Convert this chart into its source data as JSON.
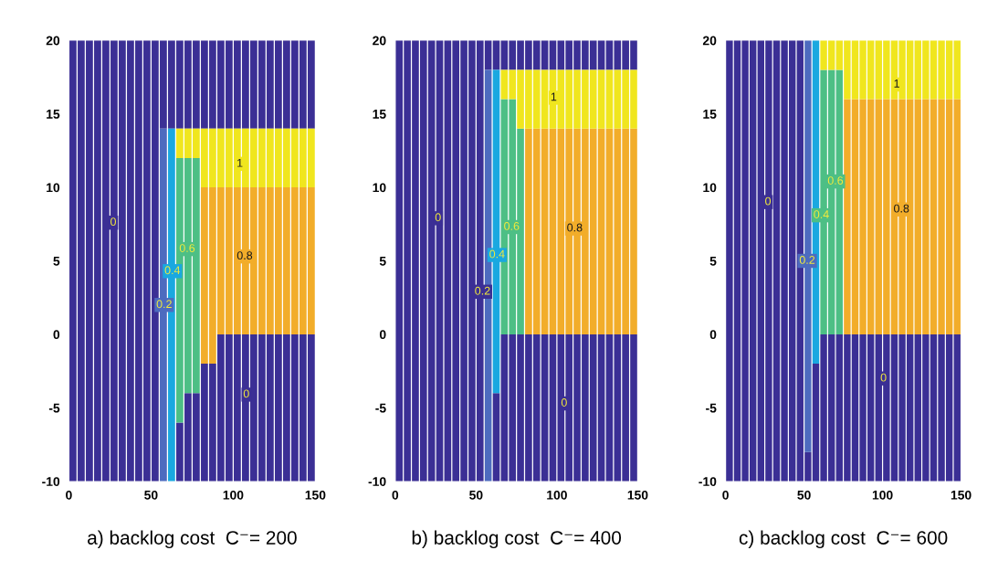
{
  "chart_data": [
    {
      "type": "bar",
      "title": "a) backlog cost  C⁻= 200",
      "xlim": [
        0,
        150
      ],
      "ylim": [
        -10,
        20
      ],
      "xticks": [
        0,
        50,
        100,
        150
      ],
      "yticks": [
        -10,
        -5,
        0,
        5,
        10,
        15,
        20
      ],
      "series": [
        {
          "color": "#3b2f95",
          "x": [
            2.5,
            7.5,
            12.5,
            17.5,
            22.5,
            27.5,
            32.5,
            37.5,
            42.5,
            47.5,
            52.5,
            67.5,
            72.5,
            77.5,
            82.5,
            87.5,
            92.5,
            97.5,
            102.5,
            107.5,
            112.5,
            117.5,
            122.5,
            127.5,
            132.5,
            137.5,
            142.5,
            147.5
          ],
          "base": [
            -10,
            -10,
            -10,
            -10,
            -10,
            -10,
            -10,
            -10,
            -10,
            -10,
            -10,
            -10,
            -10,
            -10,
            -10,
            -10,
            -10,
            -10,
            -10,
            -10,
            -10,
            -10,
            -10,
            -10,
            -10,
            -10,
            -10,
            -10
          ],
          "values": [
            30,
            30,
            30,
            30,
            30,
            30,
            30,
            30,
            30,
            30,
            30,
            4,
            6,
            6,
            8,
            8,
            10,
            10,
            10,
            10,
            10,
            10,
            10,
            10,
            10,
            10,
            10,
            10
          ]
        },
        {
          "color": "#3b2f95",
          "x": [
            57.5,
            62.5,
            67.5,
            72.5,
            77.5,
            82.5,
            87.5,
            92.5,
            97.5,
            102.5,
            107.5,
            112.5,
            117.5,
            122.5,
            127.5,
            132.5,
            137.5,
            142.5,
            147.5
          ],
          "base": [
            14,
            14,
            14,
            14,
            14,
            14,
            14,
            14,
            14,
            14,
            14,
            14,
            14,
            14,
            14,
            14,
            14,
            14,
            14
          ],
          "values": [
            6,
            6,
            6,
            6,
            6,
            6,
            6,
            6,
            6,
            6,
            6,
            6,
            6,
            6,
            6,
            6,
            6,
            6,
            6
          ]
        },
        {
          "color": "#4d6bbf",
          "x": [
            57.5
          ],
          "base": [
            -10
          ],
          "values": [
            24
          ]
        },
        {
          "color": "#1aa8e0",
          "x": [
            62.5
          ],
          "base": [
            -10
          ],
          "values": [
            24
          ]
        },
        {
          "color": "#4dbf85",
          "x": [
            67.5,
            72.5,
            77.5
          ],
          "base": [
            -6,
            -4,
            -4
          ],
          "values": [
            18,
            16,
            16
          ]
        },
        {
          "color": "#f2ad2a",
          "x": [
            82.5,
            87.5,
            92.5,
            97.5,
            102.5,
            107.5,
            112.5,
            117.5,
            122.5,
            127.5,
            132.5,
            137.5,
            142.5,
            147.5
          ],
          "base": [
            -2,
            -2,
            0,
            0,
            0,
            0,
            0,
            0,
            0,
            0,
            0,
            0,
            0,
            0
          ],
          "values": [
            12,
            12,
            10,
            10,
            10,
            10,
            10,
            10,
            10,
            10,
            10,
            10,
            10,
            10
          ]
        },
        {
          "color": "#f0e61e",
          "x": [
            67.5,
            72.5,
            77.5,
            82.5,
            87.5,
            92.5,
            97.5,
            102.5,
            107.5,
            112.5,
            117.5,
            122.5,
            127.5,
            132.5,
            137.5,
            142.5,
            147.5
          ],
          "base": [
            12,
            12,
            12,
            10,
            10,
            10,
            10,
            10,
            10,
            10,
            10,
            10,
            10,
            10,
            10,
            10,
            10
          ],
          "values": [
            2,
            2,
            2,
            4,
            4,
            4,
            4,
            4,
            4,
            4,
            4,
            4,
            4,
            4,
            4,
            4,
            4
          ]
        }
      ],
      "annotations": [
        {
          "text": "0",
          "x": 27,
          "y": 7.6
        },
        {
          "text": "0.2",
          "x": 58,
          "y": 2.0
        },
        {
          "text": "0.4",
          "x": 63,
          "y": 4.3
        },
        {
          "text": "0.6",
          "x": 72,
          "y": 5.8
        },
        {
          "text": "0.8",
          "x": 107,
          "y": 5.3
        },
        {
          "text": "1",
          "x": 104,
          "y": 11.6
        },
        {
          "text": "0",
          "x": 108,
          "y": -4.1
        }
      ]
    },
    {
      "type": "bar",
      "title": "b) backlog cost  C⁻= 400",
      "xlim": [
        0,
        150
      ],
      "ylim": [
        -10,
        20
      ],
      "xticks": [
        0,
        50,
        100,
        150
      ],
      "yticks": [
        -10,
        -5,
        0,
        5,
        10,
        15,
        20
      ],
      "series": [
        {
          "color": "#3b2f95",
          "x": [
            2.5,
            7.5,
            12.5,
            17.5,
            22.5,
            27.5,
            32.5,
            37.5,
            42.5,
            47.5,
            52.5,
            62.5,
            67.5,
            72.5,
            77.5,
            82.5,
            87.5,
            92.5,
            97.5,
            102.5,
            107.5,
            112.5,
            117.5,
            122.5,
            127.5,
            132.5,
            137.5,
            142.5,
            147.5
          ],
          "base": [
            -10,
            -10,
            -10,
            -10,
            -10,
            -10,
            -10,
            -10,
            -10,
            -10,
            -10,
            -10,
            -10,
            -10,
            -10,
            -10,
            -10,
            -10,
            -10,
            -10,
            -10,
            -10,
            -10,
            -10,
            -10,
            -10,
            -10,
            -10,
            -10
          ],
          "values": [
            30,
            30,
            30,
            30,
            30,
            30,
            30,
            30,
            30,
            30,
            30,
            6,
            10,
            10,
            10,
            10,
            10,
            10,
            10,
            10,
            10,
            10,
            10,
            10,
            10,
            10,
            10,
            10,
            10
          ]
        },
        {
          "color": "#3b2f95",
          "x": [
            57.5,
            62.5,
            67.5,
            72.5,
            77.5,
            82.5,
            87.5,
            92.5,
            97.5,
            102.5,
            107.5,
            112.5,
            117.5,
            122.5,
            127.5,
            132.5,
            137.5,
            142.5,
            147.5
          ],
          "base": [
            18,
            18,
            18,
            18,
            18,
            18,
            18,
            18,
            18,
            18,
            18,
            18,
            18,
            18,
            18,
            18,
            18,
            18,
            18
          ],
          "values": [
            2,
            2,
            2,
            2,
            2,
            2,
            2,
            2,
            2,
            2,
            2,
            2,
            2,
            2,
            2,
            2,
            2,
            2,
            2
          ]
        },
        {
          "color": "#4d6bbf",
          "x": [
            57.5
          ],
          "base": [
            -10
          ],
          "values": [
            28
          ]
        },
        {
          "color": "#1aa8e0",
          "x": [
            62.5
          ],
          "base": [
            -4
          ],
          "values": [
            22
          ]
        },
        {
          "color": "#4dbf85",
          "x": [
            67.5,
            72.5,
            77.5
          ],
          "base": [
            0,
            0,
            0
          ],
          "values": [
            16,
            16,
            14
          ]
        },
        {
          "color": "#f2ad2a",
          "x": [
            82.5,
            87.5,
            92.5,
            97.5,
            102.5,
            107.5,
            112.5,
            117.5,
            122.5,
            127.5,
            132.5,
            137.5,
            142.5,
            147.5
          ],
          "base": [
            0,
            0,
            0,
            0,
            0,
            0,
            0,
            0,
            0,
            0,
            0,
            0,
            0,
            0
          ],
          "values": [
            14,
            14,
            14,
            14,
            14,
            14,
            14,
            14,
            14,
            14,
            14,
            14,
            14,
            14
          ]
        },
        {
          "color": "#f0e61e",
          "x": [
            67.5,
            72.5,
            77.5,
            82.5,
            87.5,
            92.5,
            97.5,
            102.5,
            107.5,
            112.5,
            117.5,
            122.5,
            127.5,
            132.5,
            137.5,
            142.5,
            147.5
          ],
          "base": [
            16,
            16,
            14,
            14,
            14,
            14,
            14,
            14,
            14,
            14,
            14,
            14,
            14,
            14,
            14,
            14,
            14
          ],
          "values": [
            2,
            2,
            4,
            4,
            4,
            4,
            4,
            4,
            4,
            4,
            4,
            4,
            4,
            4,
            4,
            4,
            4
          ]
        }
      ],
      "annotations": [
        {
          "text": "0",
          "x": 26.5,
          "y": 7.9
        },
        {
          "text": "0.2",
          "x": 54,
          "y": 2.9
        },
        {
          "text": "0.4",
          "x": 63,
          "y": 5.4
        },
        {
          "text": "0.6",
          "x": 72,
          "y": 7.3
        },
        {
          "text": "0.8",
          "x": 111,
          "y": 7.2
        },
        {
          "text": "1",
          "x": 98,
          "y": 16.1
        },
        {
          "text": "0",
          "x": 104.5,
          "y": -4.7
        }
      ]
    },
    {
      "type": "bar",
      "title": "c) backlog cost  C⁻= 600",
      "xlim": [
        0,
        150
      ],
      "ylim": [
        -10,
        20
      ],
      "xticks": [
        0,
        50,
        100,
        150
      ],
      "yticks": [
        -10,
        -5,
        0,
        5,
        10,
        15,
        20
      ],
      "series": [
        {
          "color": "#3b2f95",
          "x": [
            2.5,
            7.5,
            12.5,
            17.5,
            22.5,
            27.5,
            32.5,
            37.5,
            42.5,
            47.5,
            52.5,
            57.5,
            62.5,
            67.5,
            72.5,
            77.5,
            82.5,
            87.5,
            92.5,
            97.5,
            102.5,
            107.5,
            112.5,
            117.5,
            122.5,
            127.5,
            132.5,
            137.5,
            142.5,
            147.5
          ],
          "base": [
            -10,
            -10,
            -10,
            -10,
            -10,
            -10,
            -10,
            -10,
            -10,
            -10,
            -10,
            -10,
            -10,
            -10,
            -10,
            -10,
            -10,
            -10,
            -10,
            -10,
            -10,
            -10,
            -10,
            -10,
            -10,
            -10,
            -10,
            -10,
            -10,
            -10
          ],
          "values": [
            30,
            30,
            30,
            30,
            30,
            30,
            30,
            30,
            30,
            30,
            2,
            8,
            10,
            10,
            10,
            10,
            10,
            10,
            10,
            10,
            10,
            10,
            10,
            10,
            10,
            10,
            10,
            10,
            10,
            10
          ]
        },
        {
          "color": "#4d6bbf",
          "x": [
            52.5
          ],
          "base": [
            -8
          ],
          "values": [
            28
          ]
        },
        {
          "color": "#1aa8e0",
          "x": [
            57.5
          ],
          "base": [
            -2
          ],
          "values": [
            22
          ]
        },
        {
          "color": "#4dbf85",
          "x": [
            62.5,
            67.5,
            72.5
          ],
          "base": [
            0,
            0,
            0
          ],
          "values": [
            18,
            18,
            18
          ]
        },
        {
          "color": "#f2ad2a",
          "x": [
            77.5,
            82.5,
            87.5,
            92.5,
            97.5,
            102.5,
            107.5,
            112.5,
            117.5,
            122.5,
            127.5,
            132.5,
            137.5,
            142.5,
            147.5
          ],
          "base": [
            0,
            0,
            0,
            0,
            0,
            0,
            0,
            0,
            0,
            0,
            0,
            0,
            0,
            0,
            0
          ],
          "values": [
            16,
            16,
            16,
            16,
            16,
            16,
            16,
            16,
            16,
            16,
            16,
            16,
            16,
            16,
            16
          ]
        },
        {
          "color": "#f0e61e",
          "x": [
            62.5,
            67.5,
            72.5,
            77.5,
            82.5,
            87.5,
            92.5,
            97.5,
            102.5,
            107.5,
            112.5,
            117.5,
            122.5,
            127.5,
            132.5,
            137.5,
            142.5,
            147.5
          ],
          "base": [
            18,
            18,
            18,
            16,
            16,
            16,
            16,
            16,
            16,
            16,
            16,
            16,
            16,
            16,
            16,
            16,
            16,
            16
          ],
          "values": [
            2,
            2,
            2,
            4,
            4,
            4,
            4,
            4,
            4,
            4,
            4,
            4,
            4,
            4,
            4,
            4,
            4,
            4
          ]
        }
      ],
      "annotations": [
        {
          "text": "0",
          "x": 27,
          "y": 9.0
        },
        {
          "text": "0.2",
          "x": 52,
          "y": 5.0
        },
        {
          "text": "0.4",
          "x": 61,
          "y": 8.1
        },
        {
          "text": "0.6",
          "x": 70,
          "y": 10.4
        },
        {
          "text": "0.8",
          "x": 112,
          "y": 8.5
        },
        {
          "text": "1",
          "x": 109,
          "y": 17.0
        },
        {
          "text": "0",
          "x": 100.6,
          "y": -3.0
        }
      ]
    }
  ]
}
